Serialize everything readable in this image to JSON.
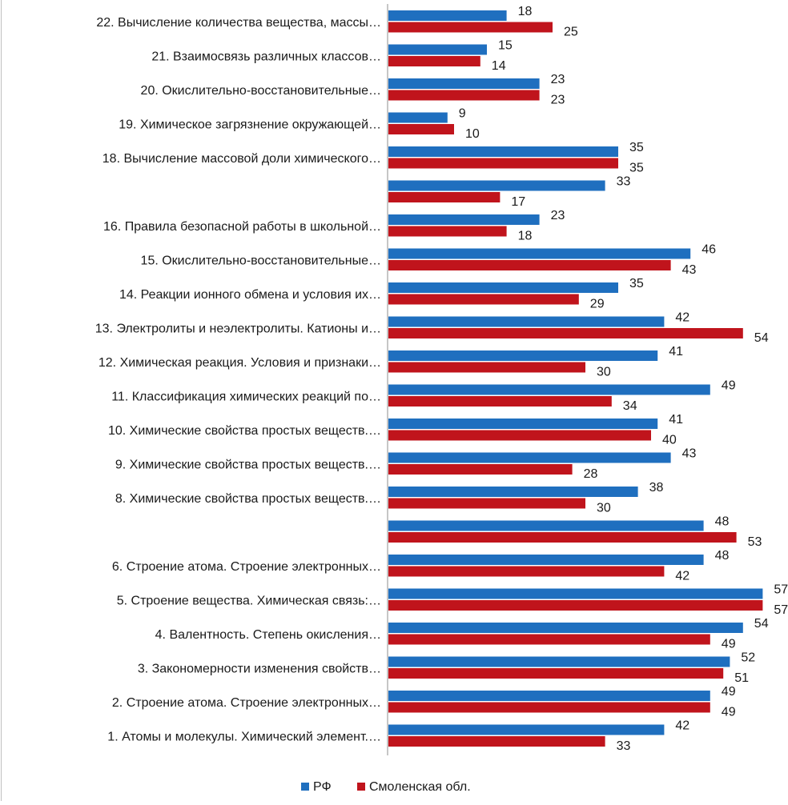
{
  "chart_data": {
    "type": "bar",
    "orientation": "horizontal",
    "title": "",
    "xlabel": "",
    "ylabel": "",
    "xlim": [
      0,
      60
    ],
    "grid": false,
    "legend_position": "bottom",
    "categories": [
      "22. Вычисление количества вещества, массы…",
      "21. Взаимосвязь различных классов…",
      "20. Окислительно-восстановительные…",
      "19. Химическое загрязнение окружающей…",
      "18. Вычисление массовой доли химического…",
      "",
      "16. Правила безопасной работы в школьной…",
      "15. Окислительно-восстановительные…",
      "14. Реакции ионного обмена и условия их…",
      "13. Электролиты и неэлектролиты. Катионы и…",
      "12. Химическая реакция. Условия и признаки…",
      "11. Классификация химических реакций по…",
      "10. Химические свойства простых веществ.…",
      "9. Химические свойства простых веществ.…",
      "8. Химические свойства простых веществ.…",
      "",
      "6. Строение атома. Строение электронных…",
      "5. Строение вещества. Химическая связь:…",
      "4. Валентность. Степень окисления…",
      "3. Закономерности изменения свойств…",
      "2. Строение атома. Строение электронных…",
      "1. Атомы и молекулы. Химический элемент.…"
    ],
    "series": [
      {
        "name": "РФ",
        "color": "#1f6fbf",
        "values": [
          18,
          15,
          23,
          9,
          35,
          33,
          23,
          46,
          35,
          42,
          41,
          49,
          41,
          43,
          38,
          48,
          48,
          57,
          54,
          52,
          49,
          42
        ]
      },
      {
        "name": "Смоленская обл.",
        "color": "#c0141c",
        "values": [
          25,
          14,
          23,
          10,
          35,
          17,
          18,
          43,
          29,
          54,
          30,
          34,
          40,
          28,
          30,
          53,
          42,
          57,
          49,
          51,
          49,
          33
        ]
      }
    ]
  }
}
